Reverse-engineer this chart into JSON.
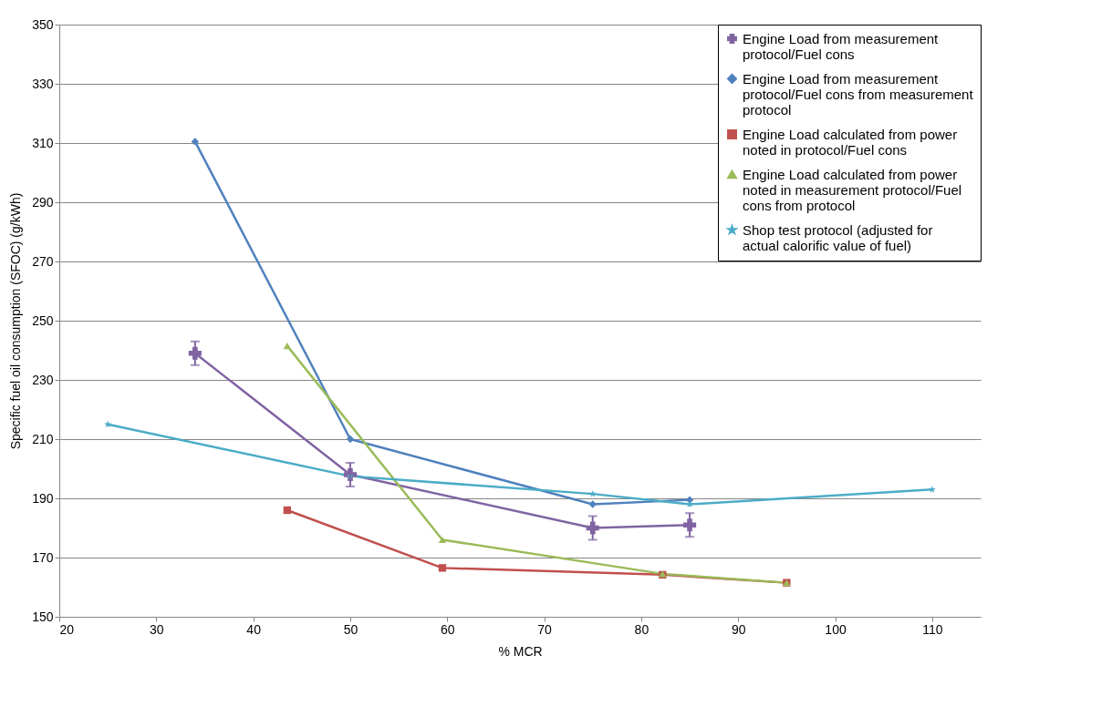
{
  "chart_data": {
    "type": "line",
    "xlabel": "% MCR",
    "ylabel": "Specific fuel oil consumption (SFOC) (g/kWh)",
    "xlim": [
      20,
      115
    ],
    "xticks": [
      20,
      30,
      40,
      50,
      60,
      70,
      80,
      90,
      100,
      110
    ],
    "ylim": [
      150,
      350
    ],
    "yticks": [
      150,
      170,
      190,
      210,
      230,
      250,
      270,
      290,
      310,
      330,
      350
    ],
    "grid": "y",
    "legend": "top right",
    "line_style": "solid",
    "series": [
      {
        "name": "Engine Load from measurement protocol/Fuel cons",
        "color": "#8064a2",
        "marker": "cross",
        "x": [
          34,
          50,
          75,
          85
        ],
        "values": [
          239,
          198,
          180,
          181
        ],
        "errors": [
          4,
          4,
          4,
          4
        ]
      },
      {
        "name": "Engine Load from measurement protocol/Fuel cons from measurement protocol",
        "color": "#4f81bd",
        "marker": "diamond",
        "x": [
          34,
          50,
          75,
          85
        ],
        "values": [
          310.5,
          210,
          188,
          189.5
        ]
      },
      {
        "name": "Engine Load calculated from power noted in protocol/Fuel cons",
        "color": "#c0504d",
        "marker": "square",
        "x": [
          43.5,
          59.5,
          82.2,
          95
        ],
        "values": [
          186,
          166.5,
          164.2,
          161.5
        ]
      },
      {
        "name": "Engine Load calculated from power noted in measurement protocol/Fuel cons from protocol",
        "color": "#9bbb59",
        "marker": "triangle",
        "x": [
          43.5,
          59.5,
          82.2,
          95
        ],
        "values": [
          241.5,
          176,
          164.5,
          161.5
        ]
      },
      {
        "name": "Shop test protocol (adjusted for actual calorific value of fuel)",
        "color": "#4bacc6",
        "marker": "star",
        "x": [
          25,
          50,
          75,
          85,
          110
        ],
        "values": [
          215,
          197.5,
          191.5,
          188,
          193
        ]
      }
    ]
  }
}
